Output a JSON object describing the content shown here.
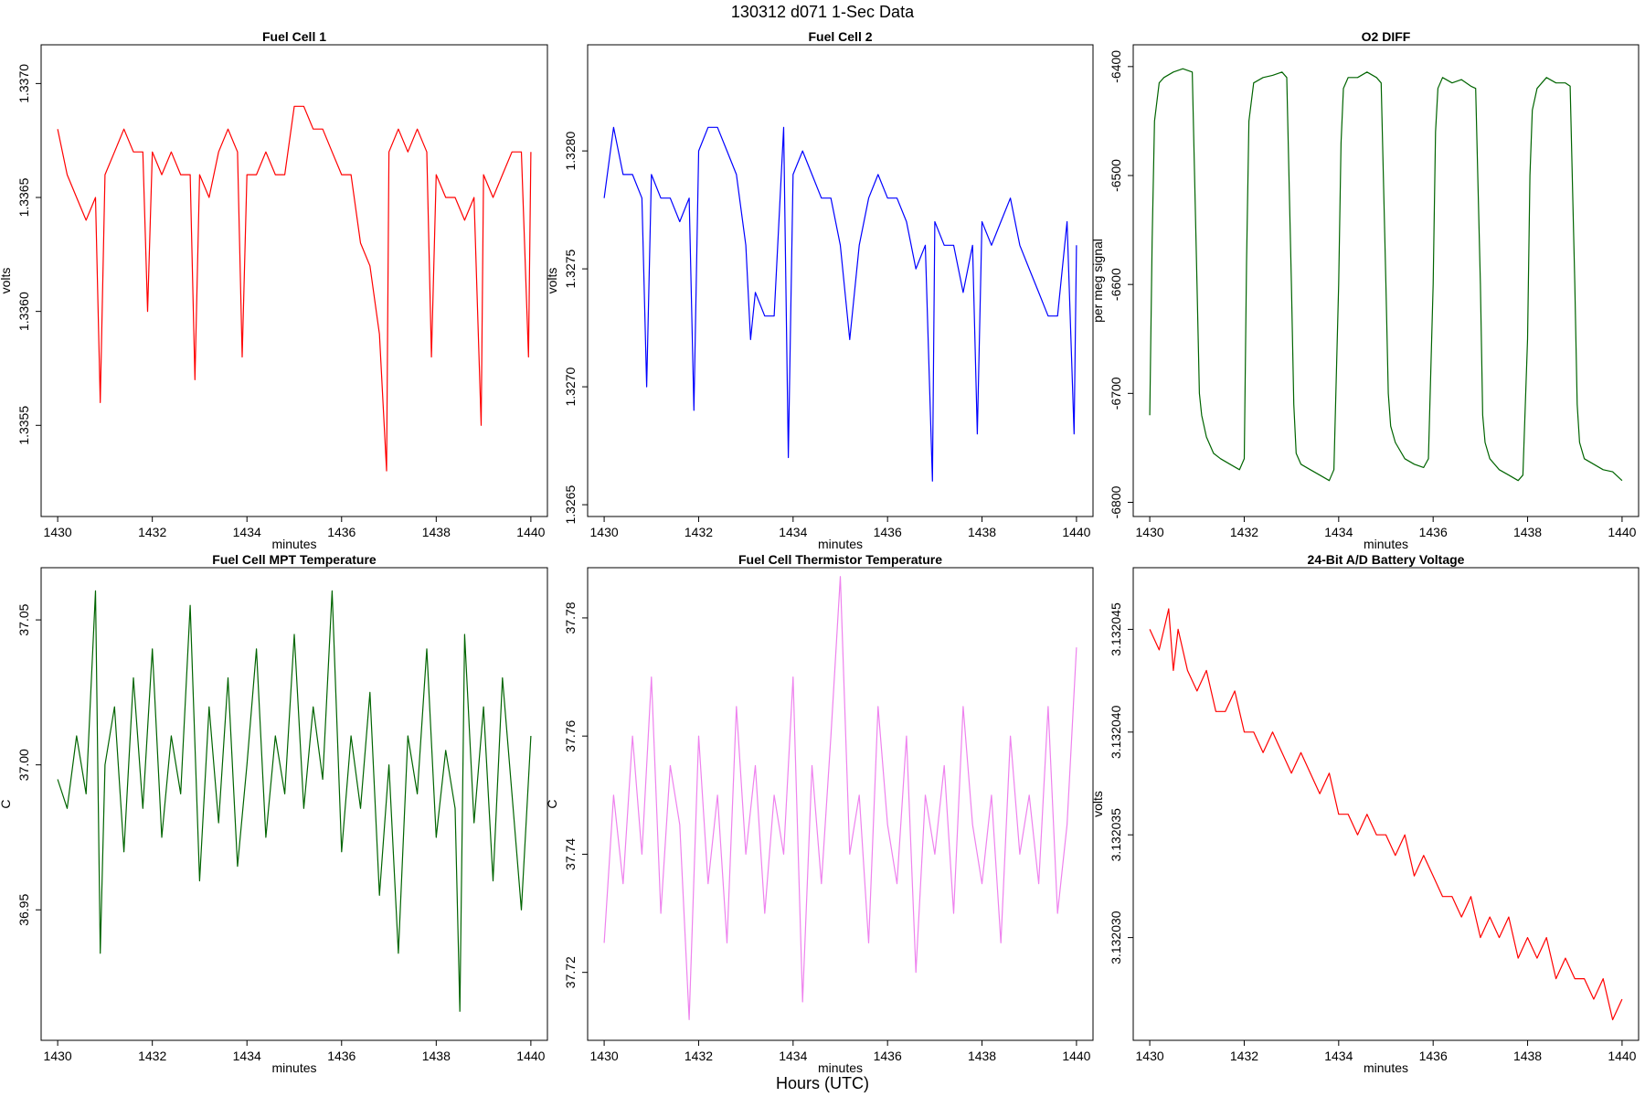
{
  "figure": {
    "title": "130312   d071   1-Sec Data",
    "xlabel": "Hours (UTC)"
  },
  "chart_data": [
    {
      "type": "line",
      "title": "Fuel Cell 1",
      "xlabel": "minutes",
      "ylabel": "volts",
      "color": "#ff0000",
      "xlim": [
        1429.65,
        1440.35
      ],
      "ylim": [
        1.3351,
        1.33717
      ],
      "xticks": [
        1430,
        1432,
        1434,
        1436,
        1438,
        1440
      ],
      "yticks": [
        1.3355,
        1.336,
        1.3365,
        1.337
      ],
      "ytick_labels": [
        "1.3355",
        "1.3360",
        "1.3365",
        "1.3370"
      ],
      "x": [
        1430.0,
        1430.2,
        1430.4,
        1430.6,
        1430.8,
        1430.9,
        1431.0,
        1431.2,
        1431.4,
        1431.6,
        1431.8,
        1431.9,
        1432.0,
        1432.2,
        1432.4,
        1432.6,
        1432.8,
        1432.9,
        1433.0,
        1433.2,
        1433.4,
        1433.6,
        1433.8,
        1433.9,
        1434.0,
        1434.2,
        1434.4,
        1434.6,
        1434.8,
        1435.0,
        1435.2,
        1435.4,
        1435.6,
        1435.8,
        1436.0,
        1436.2,
        1436.4,
        1436.6,
        1436.8,
        1436.95,
        1437.0,
        1437.2,
        1437.4,
        1437.6,
        1437.8,
        1437.9,
        1438.0,
        1438.2,
        1438.4,
        1438.6,
        1438.8,
        1438.95,
        1439.0,
        1439.2,
        1439.4,
        1439.6,
        1439.8,
        1439.95,
        1440.0
      ],
      "y": [
        1.3368,
        1.3366,
        1.3365,
        1.3364,
        1.3365,
        1.3356,
        1.3366,
        1.3367,
        1.3368,
        1.3367,
        1.3367,
        1.336,
        1.3367,
        1.3366,
        1.3367,
        1.3366,
        1.3366,
        1.3357,
        1.3366,
        1.3365,
        1.3367,
        1.3368,
        1.3367,
        1.3358,
        1.3366,
        1.3366,
        1.3367,
        1.3366,
        1.3366,
        1.3369,
        1.3369,
        1.3368,
        1.3368,
        1.3367,
        1.3366,
        1.3366,
        1.3363,
        1.3362,
        1.3359,
        1.3353,
        1.3367,
        1.3368,
        1.3367,
        1.3368,
        1.3367,
        1.3358,
        1.3366,
        1.3365,
        1.3365,
        1.3364,
        1.3365,
        1.3355,
        1.3366,
        1.3365,
        1.3366,
        1.3367,
        1.3367,
        1.3358,
        1.3367
      ]
    },
    {
      "type": "line",
      "title": "Fuel Cell 2",
      "xlabel": "minutes",
      "ylabel": "volts",
      "color": "#0000ff",
      "xlim": [
        1429.65,
        1440.35
      ],
      "ylim": [
        1.32645,
        1.32845
      ],
      "xticks": [
        1430,
        1432,
        1434,
        1436,
        1438,
        1440
      ],
      "yticks": [
        1.3265,
        1.327,
        1.3275,
        1.328
      ],
      "ytick_labels": [
        "1.3265",
        "1.3270",
        "1.3275",
        "1.3280"
      ],
      "x": [
        1430.0,
        1430.2,
        1430.4,
        1430.6,
        1430.8,
        1430.9,
        1431.0,
        1431.2,
        1431.4,
        1431.6,
        1431.8,
        1431.9,
        1432.0,
        1432.2,
        1432.4,
        1432.6,
        1432.8,
        1433.0,
        1433.1,
        1433.2,
        1433.4,
        1433.6,
        1433.8,
        1433.9,
        1434.0,
        1434.2,
        1434.4,
        1434.6,
        1434.8,
        1435.0,
        1435.2,
        1435.4,
        1435.6,
        1435.8,
        1436.0,
        1436.2,
        1436.4,
        1436.6,
        1436.8,
        1436.95,
        1437.0,
        1437.2,
        1437.4,
        1437.6,
        1437.8,
        1437.9,
        1438.0,
        1438.2,
        1438.4,
        1438.6,
        1438.8,
        1439.0,
        1439.2,
        1439.4,
        1439.6,
        1439.8,
        1439.95,
        1440.0
      ],
      "y": [
        1.3278,
        1.3281,
        1.3279,
        1.3279,
        1.3278,
        1.327,
        1.3279,
        1.3278,
        1.3278,
        1.3277,
        1.3278,
        1.3269,
        1.328,
        1.3281,
        1.3281,
        1.328,
        1.3279,
        1.3276,
        1.3272,
        1.3274,
        1.3273,
        1.3273,
        1.3281,
        1.3267,
        1.3279,
        1.328,
        1.3279,
        1.3278,
        1.3278,
        1.3276,
        1.3272,
        1.3276,
        1.3278,
        1.3279,
        1.3278,
        1.3278,
        1.3277,
        1.3275,
        1.3276,
        1.3266,
        1.3277,
        1.3276,
        1.3276,
        1.3274,
        1.3276,
        1.3268,
        1.3277,
        1.3276,
        1.3277,
        1.3278,
        1.3276,
        1.3275,
        1.3274,
        1.3273,
        1.3273,
        1.3277,
        1.3268,
        1.3276
      ]
    },
    {
      "type": "line",
      "title": "O2 DIFF",
      "xlabel": "minutes",
      "ylabel": "per meg signal",
      "color": "#006400",
      "xlim": [
        1429.65,
        1440.35
      ],
      "ylim": [
        -6813,
        -6380
      ],
      "xticks": [
        1430,
        1432,
        1434,
        1436,
        1438,
        1440
      ],
      "yticks": [
        -6800,
        -6700,
        -6600,
        -6500,
        -6400
      ],
      "ytick_labels": [
        "-6800",
        "-6700",
        "-6600",
        "-6500",
        "-6400"
      ],
      "x": [
        1430.0,
        1430.05,
        1430.1,
        1430.2,
        1430.3,
        1430.5,
        1430.7,
        1430.9,
        1431.0,
        1431.05,
        1431.1,
        1431.2,
        1431.35,
        1431.5,
        1431.7,
        1431.9,
        1432.0,
        1432.05,
        1432.1,
        1432.2,
        1432.4,
        1432.6,
        1432.8,
        1432.9,
        1433.0,
        1433.05,
        1433.1,
        1433.2,
        1433.4,
        1433.6,
        1433.8,
        1433.9,
        1434.0,
        1434.05,
        1434.1,
        1434.2,
        1434.4,
        1434.6,
        1434.8,
        1434.9,
        1435.0,
        1435.05,
        1435.1,
        1435.2,
        1435.4,
        1435.6,
        1435.8,
        1435.9,
        1436.0,
        1436.05,
        1436.1,
        1436.2,
        1436.4,
        1436.6,
        1436.8,
        1436.9,
        1437.0,
        1437.05,
        1437.1,
        1437.2,
        1437.4,
        1437.6,
        1437.8,
        1437.9,
        1438.0,
        1438.05,
        1438.1,
        1438.2,
        1438.4,
        1438.6,
        1438.8,
        1438.9,
        1439.0,
        1439.05,
        1439.1,
        1439.2,
        1439.4,
        1439.6,
        1439.8,
        1440.0
      ],
      "y": [
        -6720,
        -6560,
        -6450,
        -6415,
        -6410,
        -6405,
        -6402,
        -6405,
        -6600,
        -6700,
        -6720,
        -6740,
        -6755,
        -6760,
        -6765,
        -6770,
        -6760,
        -6580,
        -6450,
        -6415,
        -6410,
        -6408,
        -6405,
        -6410,
        -6600,
        -6710,
        -6755,
        -6765,
        -6770,
        -6775,
        -6780,
        -6770,
        -6600,
        -6470,
        -6420,
        -6410,
        -6410,
        -6405,
        -6410,
        -6415,
        -6600,
        -6700,
        -6730,
        -6745,
        -6760,
        -6765,
        -6768,
        -6760,
        -6600,
        -6460,
        -6420,
        -6410,
        -6415,
        -6412,
        -6418,
        -6420,
        -6600,
        -6720,
        -6745,
        -6760,
        -6770,
        -6775,
        -6780,
        -6775,
        -6650,
        -6500,
        -6440,
        -6420,
        -6410,
        -6415,
        -6415,
        -6418,
        -6600,
        -6710,
        -6745,
        -6760,
        -6765,
        -6770,
        -6772,
        -6780
      ]
    },
    {
      "type": "line",
      "title": "Fuel Cell MPT Temperature",
      "xlabel": "minutes",
      "ylabel": "C",
      "color": "#006400",
      "xlim": [
        1429.65,
        1440.35
      ],
      "ylim": [
        36.905,
        37.068
      ],
      "xticks": [
        1430,
        1432,
        1434,
        1436,
        1438,
        1440
      ],
      "yticks": [
        36.95,
        37.0,
        37.05
      ],
      "ytick_labels": [
        "36.95",
        "37.00",
        "37.05"
      ],
      "x": [
        1430.0,
        1430.2,
        1430.4,
        1430.6,
        1430.8,
        1430.9,
        1431.0,
        1431.2,
        1431.4,
        1431.6,
        1431.8,
        1432.0,
        1432.2,
        1432.4,
        1432.6,
        1432.8,
        1433.0,
        1433.2,
        1433.4,
        1433.6,
        1433.8,
        1434.0,
        1434.2,
        1434.4,
        1434.6,
        1434.8,
        1435.0,
        1435.2,
        1435.4,
        1435.6,
        1435.8,
        1436.0,
        1436.2,
        1436.4,
        1436.6,
        1436.8,
        1437.0,
        1437.2,
        1437.4,
        1437.6,
        1437.8,
        1438.0,
        1438.2,
        1438.4,
        1438.5,
        1438.6,
        1438.8,
        1439.0,
        1439.2,
        1439.4,
        1439.6,
        1439.8,
        1440.0
      ],
      "y": [
        36.995,
        36.985,
        37.01,
        36.99,
        37.06,
        36.935,
        37.0,
        37.02,
        36.97,
        37.03,
        36.985,
        37.04,
        36.975,
        37.01,
        36.99,
        37.055,
        36.96,
        37.02,
        36.98,
        37.03,
        36.965,
        37.0,
        37.04,
        36.975,
        37.01,
        36.99,
        37.045,
        36.985,
        37.02,
        36.995,
        37.06,
        36.97,
        37.01,
        36.985,
        37.025,
        36.955,
        37.0,
        36.935,
        37.01,
        36.99,
        37.04,
        36.975,
        37.005,
        36.985,
        36.915,
        37.045,
        36.98,
        37.02,
        36.96,
        37.03,
        36.99,
        36.95,
        37.01
      ]
    },
    {
      "type": "line",
      "title": "Fuel Cell Thermistor Temperature",
      "xlabel": "minutes",
      "ylabel": "C",
      "color": "#ee82ee",
      "xlim": [
        1429.65,
        1440.35
      ],
      "ylim": [
        37.7085,
        37.7885
      ],
      "xticks": [
        1430,
        1432,
        1434,
        1436,
        1438,
        1440
      ],
      "yticks": [
        37.72,
        37.74,
        37.76,
        37.78
      ],
      "ytick_labels": [
        "37.72",
        "37.74",
        "37.76",
        "37.78"
      ],
      "x": [
        1430.0,
        1430.2,
        1430.4,
        1430.6,
        1430.8,
        1431.0,
        1431.2,
        1431.4,
        1431.6,
        1431.8,
        1432.0,
        1432.2,
        1432.4,
        1432.6,
        1432.8,
        1433.0,
        1433.2,
        1433.4,
        1433.6,
        1433.8,
        1434.0,
        1434.2,
        1434.4,
        1434.6,
        1434.8,
        1435.0,
        1435.2,
        1435.4,
        1435.6,
        1435.8,
        1436.0,
        1436.2,
        1436.4,
        1436.6,
        1436.8,
        1437.0,
        1437.2,
        1437.4,
        1437.6,
        1437.8,
        1438.0,
        1438.2,
        1438.4,
        1438.6,
        1438.8,
        1439.0,
        1439.2,
        1439.4,
        1439.6,
        1439.8,
        1440.0
      ],
      "y": [
        37.725,
        37.75,
        37.735,
        37.76,
        37.74,
        37.77,
        37.73,
        37.755,
        37.745,
        37.712,
        37.76,
        37.735,
        37.75,
        37.725,
        37.765,
        37.74,
        37.755,
        37.73,
        37.75,
        37.74,
        37.77,
        37.715,
        37.755,
        37.735,
        37.76,
        37.787,
        37.74,
        37.75,
        37.725,
        37.765,
        37.745,
        37.735,
        37.76,
        37.72,
        37.75,
        37.74,
        37.755,
        37.73,
        37.765,
        37.745,
        37.735,
        37.75,
        37.725,
        37.76,
        37.74,
        37.75,
        37.735,
        37.765,
        37.73,
        37.745,
        37.775
      ]
    },
    {
      "type": "line",
      "title": "24-Bit A/D Battery Voltage",
      "xlabel": "minutes",
      "ylabel": "volts",
      "color": "#ff0000",
      "xlim": [
        1429.65,
        1440.35
      ],
      "ylim": [
        3.132025,
        3.132048
      ],
      "xticks": [
        1430,
        1432,
        1434,
        1436,
        1438,
        1440
      ],
      "yticks": [
        3.13203,
        3.132035,
        3.13204,
        3.132045
      ],
      "ytick_labels": [
        "3.132030",
        "3.132035",
        "3.132040",
        "3.132045"
      ],
      "x": [
        1430.0,
        1430.2,
        1430.4,
        1430.5,
        1430.6,
        1430.8,
        1431.0,
        1431.2,
        1431.4,
        1431.6,
        1431.8,
        1432.0,
        1432.2,
        1432.4,
        1432.6,
        1432.8,
        1433.0,
        1433.2,
        1433.4,
        1433.6,
        1433.8,
        1434.0,
        1434.2,
        1434.4,
        1434.6,
        1434.8,
        1435.0,
        1435.2,
        1435.4,
        1435.6,
        1435.8,
        1436.0,
        1436.2,
        1436.4,
        1436.6,
        1436.8,
        1437.0,
        1437.2,
        1437.4,
        1437.6,
        1437.8,
        1438.0,
        1438.2,
        1438.4,
        1438.6,
        1438.8,
        1439.0,
        1439.2,
        1439.4,
        1439.6,
        1439.8,
        1440.0
      ],
      "y": [
        3.132045,
        3.132044,
        3.132046,
        3.132043,
        3.132045,
        3.132043,
        3.132042,
        3.132043,
        3.132041,
        3.132041,
        3.132042,
        3.13204,
        3.13204,
        3.132039,
        3.13204,
        3.132039,
        3.132038,
        3.132039,
        3.132038,
        3.132037,
        3.132038,
        3.132036,
        3.132036,
        3.132035,
        3.132036,
        3.132035,
        3.132035,
        3.132034,
        3.132035,
        3.132033,
        3.132034,
        3.132033,
        3.132032,
        3.132032,
        3.132031,
        3.132032,
        3.13203,
        3.132031,
        3.13203,
        3.132031,
        3.132029,
        3.13203,
        3.132029,
        3.13203,
        3.132028,
        3.132029,
        3.132028,
        3.132028,
        3.132027,
        3.132028,
        3.132026,
        3.132027
      ]
    }
  ]
}
